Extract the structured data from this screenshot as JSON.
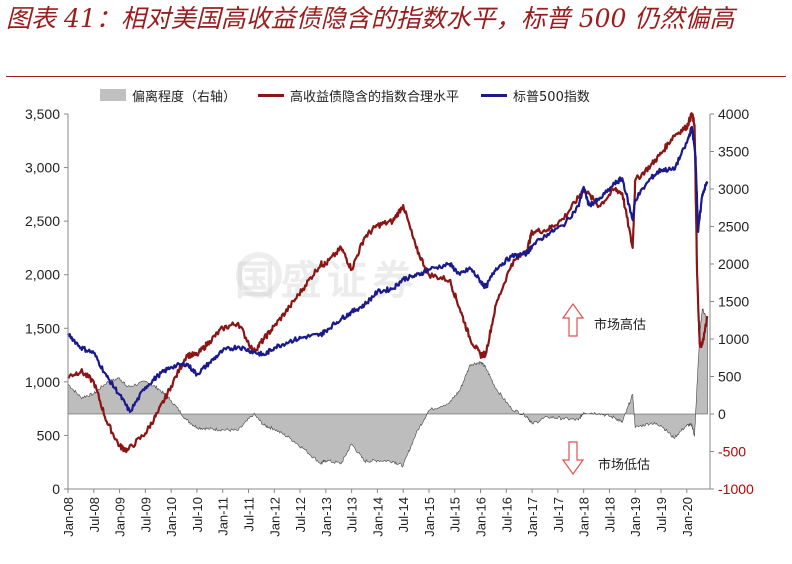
{
  "title": "图表 41：相对美国高收益债隐含的指数水平，标普 500 仍然偏高",
  "watermark": "国盛证券",
  "legend": {
    "deviation": "偏离程度（右轴）",
    "implied": "高收益债隐含的指数合理水平",
    "sp500": "标普500指数"
  },
  "annotations": {
    "high": "市场高估",
    "low": "市场低估"
  },
  "colors": {
    "implied": "#8b1414",
    "sp500": "#1a1a8c",
    "deviation_fill": "#bdbdbd",
    "deviation_stroke": "#444444",
    "arrow": "#e05050"
  },
  "chart_data": {
    "type": "line",
    "title": "",
    "xlabel": "",
    "ylabel": "",
    "x_ticks": [
      "Jan-08",
      "Jul-08",
      "Jan-09",
      "Jul-09",
      "Jan-10",
      "Jul-10",
      "Jan-11",
      "Jul-11",
      "Jan-12",
      "Jul-12",
      "Jan-13",
      "Jul-13",
      "Jan-14",
      "Jul-14",
      "Jan-15",
      "Jul-15",
      "Jan-16",
      "Jul-16",
      "Jan-17",
      "Jul-17",
      "Jan-18",
      "Jul-18",
      "Jan-19",
      "Jul-19",
      "Jan-20"
    ],
    "y_left": {
      "lim": [
        0,
        3500
      ],
      "ticks": [
        "0",
        "500",
        "1,000",
        "1,500",
        "2,000",
        "2,500",
        "3,000",
        "3,500"
      ]
    },
    "y_right": {
      "lim": [
        -1000,
        4000
      ],
      "ticks": [
        "-1000",
        "-500",
        "0",
        "500",
        "1000",
        "1500",
        "2000",
        "2500",
        "3000",
        "3500",
        "4000"
      ]
    },
    "series": [
      {
        "name": "标普500指数",
        "axis": "left",
        "x": [
          2008.0,
          2008.25,
          2008.5,
          2008.75,
          2009.0,
          2009.2,
          2009.5,
          2009.75,
          2010.0,
          2010.3,
          2010.5,
          2010.75,
          2011.0,
          2011.3,
          2011.6,
          2011.8,
          2012.0,
          2012.3,
          2012.6,
          2012.9,
          2013.0,
          2013.3,
          2013.5,
          2013.75,
          2014.0,
          2014.3,
          2014.5,
          2014.75,
          2015.0,
          2015.4,
          2015.6,
          2015.8,
          2016.0,
          2016.1,
          2016.3,
          2016.6,
          2016.9,
          2017.0,
          2017.3,
          2017.6,
          2017.9,
          2018.0,
          2018.1,
          2018.3,
          2018.6,
          2018.75,
          2018.95,
          2019.0,
          2019.3,
          2019.5,
          2019.75,
          2020.0,
          2020.1,
          2020.17,
          2020.22,
          2020.3,
          2020.4
        ],
        "values": [
          1450,
          1320,
          1270,
          1050,
          880,
          720,
          950,
          1060,
          1140,
          1170,
          1070,
          1180,
          1290,
          1330,
          1280,
          1250,
          1320,
          1380,
          1420,
          1440,
          1480,
          1590,
          1650,
          1720,
          1840,
          1870,
          1960,
          1990,
          2050,
          2100,
          2000,
          2060,
          1940,
          1880,
          2060,
          2170,
          2200,
          2270,
          2380,
          2460,
          2640,
          2820,
          2650,
          2700,
          2850,
          2900,
          2510,
          2700,
          2900,
          2980,
          2980,
          3230,
          3380,
          3100,
          2400,
          2750,
          2870
        ]
      },
      {
        "name": "高收益债隐含的指数合理水平",
        "axis": "left",
        "x": [
          2008.0,
          2008.25,
          2008.5,
          2008.75,
          2009.0,
          2009.15,
          2009.5,
          2009.75,
          2010.0,
          2010.3,
          2010.5,
          2010.75,
          2011.0,
          2011.3,
          2011.6,
          2011.8,
          2012.0,
          2012.3,
          2012.6,
          2012.9,
          2013.0,
          2013.3,
          2013.5,
          2013.75,
          2014.0,
          2014.3,
          2014.5,
          2014.75,
          2015.0,
          2015.4,
          2015.6,
          2015.8,
          2016.0,
          2016.1,
          2016.3,
          2016.6,
          2016.9,
          2017.0,
          2017.3,
          2017.6,
          2017.9,
          2018.0,
          2018.3,
          2018.6,
          2018.75,
          2018.95,
          2019.0,
          2019.3,
          2019.5,
          2019.75,
          2020.0,
          2020.1,
          2020.15,
          2020.2,
          2020.25,
          2020.3,
          2020.4
        ],
        "values": [
          1050,
          1100,
          1000,
          630,
          400,
          360,
          520,
          720,
          960,
          1250,
          1250,
          1380,
          1500,
          1550,
          1280,
          1400,
          1520,
          1700,
          1900,
          2100,
          2100,
          2250,
          2050,
          2350,
          2460,
          2500,
          2650,
          2250,
          2000,
          1950,
          1680,
          1400,
          1250,
          1260,
          1720,
          2100,
          2230,
          2400,
          2420,
          2520,
          2720,
          2800,
          2640,
          2800,
          2760,
          2250,
          2880,
          3020,
          3130,
          3300,
          3380,
          3500,
          3400,
          2000,
          1350,
          1350,
          1600
        ]
      },
      {
        "name": "偏离程度（右轴）",
        "axis": "right",
        "type": "area",
        "x": [
          2008.0,
          2008.25,
          2008.5,
          2008.75,
          2009.0,
          2009.15,
          2009.5,
          2009.75,
          2010.0,
          2010.3,
          2010.5,
          2010.75,
          2011.0,
          2011.3,
          2011.6,
          2011.8,
          2012.0,
          2012.3,
          2012.6,
          2012.9,
          2013.0,
          2013.3,
          2013.5,
          2013.75,
          2014.0,
          2014.3,
          2014.5,
          2014.75,
          2015.0,
          2015.4,
          2015.6,
          2015.8,
          2016.0,
          2016.1,
          2016.3,
          2016.6,
          2016.9,
          2017.0,
          2017.3,
          2017.6,
          2017.9,
          2018.0,
          2018.3,
          2018.6,
          2018.75,
          2018.95,
          2019.0,
          2019.3,
          2019.5,
          2019.75,
          2020.0,
          2020.1,
          2020.15,
          2020.2,
          2020.25,
          2020.3,
          2020.4
        ],
        "values": [
          400,
          220,
          270,
          420,
          480,
          360,
          430,
          340,
          180,
          -80,
          -180,
          -200,
          -210,
          -220,
          0,
          -150,
          -200,
          -320,
          -480,
          -660,
          -620,
          -660,
          -400,
          -630,
          -620,
          -630,
          -690,
          -260,
          50,
          150,
          320,
          660,
          690,
          620,
          340,
          70,
          -30,
          -130,
          -40,
          -60,
          -80,
          20,
          10,
          -50,
          -110,
          260,
          -180,
          -120,
          -150,
          -320,
          -150,
          -150,
          -300,
          400,
          1050,
          1400,
          1270
        ]
      }
    ]
  }
}
